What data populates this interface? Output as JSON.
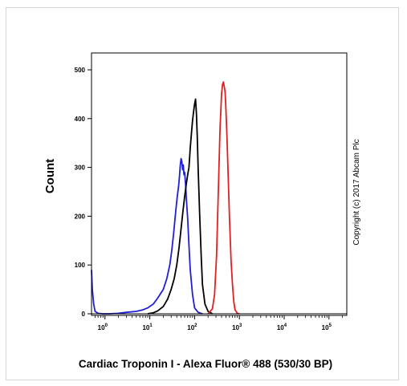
{
  "chart_data": {
    "type": "line",
    "title": "",
    "xlabel": "Cardiac Troponin I - Alexa Fluor® 488 (530/30 BP)",
    "ylabel": "Count",
    "x_scale": "log",
    "xlim": [
      0.5,
      250000
    ],
    "ylim": [
      0,
      520
    ],
    "grid": false,
    "legend": "none",
    "x_ticks": [
      {
        "value": 1,
        "base": "10",
        "exp": "0"
      },
      {
        "value": 10,
        "base": "10",
        "exp": "1"
      },
      {
        "value": 100,
        "base": "10",
        "exp": "2"
      },
      {
        "value": 1000,
        "base": "10",
        "exp": "3"
      },
      {
        "value": 10000,
        "base": "10",
        "exp": "4"
      },
      {
        "value": 100000,
        "base": "10",
        "exp": "5"
      }
    ],
    "y_ticks": [
      {
        "value": 0,
        "label": "0"
      },
      {
        "value": 100,
        "label": "100"
      },
      {
        "value": 200,
        "label": "200"
      },
      {
        "value": 300,
        "label": "300"
      },
      {
        "value": 400,
        "label": "400"
      },
      {
        "value": 500,
        "label": "500"
      }
    ],
    "series": [
      {
        "color": "#1f1fd6",
        "x": [
          0.5,
          0.52,
          0.56,
          0.6,
          0.7,
          0.9,
          1.2,
          2,
          3,
          5,
          7,
          9,
          12,
          15,
          20,
          24,
          28,
          31,
          34,
          38,
          41,
          44,
          46,
          48,
          50,
          52,
          54,
          56,
          58,
          60,
          63,
          66,
          70,
          75,
          80,
          90,
          100,
          120,
          150
        ],
        "values": [
          90,
          50,
          20,
          5,
          1,
          0,
          0,
          1,
          3,
          5,
          8,
          12,
          20,
          32,
          50,
          72,
          100,
          130,
          165,
          210,
          240,
          262,
          282,
          305,
          318,
          312,
          295,
          305,
          285,
          290,
          265,
          232,
          195,
          140,
          90,
          40,
          12,
          3,
          0
        ]
      },
      {
        "color": "#000000",
        "x": [
          9,
          12,
          15,
          20,
          25,
          30,
          35,
          40,
          45,
          50,
          55,
          60,
          65,
          70,
          75,
          80,
          85,
          90,
          95,
          100,
          105,
          110,
          115,
          120,
          130,
          140,
          150,
          170,
          200,
          250
        ],
        "values": [
          0,
          2,
          6,
          15,
          30,
          50,
          72,
          100,
          135,
          175,
          210,
          240,
          265,
          285,
          300,
          340,
          370,
          395,
          415,
          430,
          440,
          410,
          360,
          300,
          200,
          120,
          60,
          20,
          5,
          0
        ]
      },
      {
        "color": "#e02020",
        "x": [
          200,
          250,
          280,
          310,
          340,
          370,
          400,
          420,
          440,
          460,
          480,
          500,
          530,
          560,
          600,
          650,
          700,
          750,
          800,
          900,
          1000
        ],
        "values": [
          0,
          10,
          40,
          120,
          260,
          380,
          450,
          470,
          475,
          465,
          455,
          420,
          360,
          290,
          200,
          110,
          60,
          25,
          8,
          1,
          0
        ]
      }
    ]
  },
  "copyright": "Copyright (c) 2017 Abcam Plc"
}
